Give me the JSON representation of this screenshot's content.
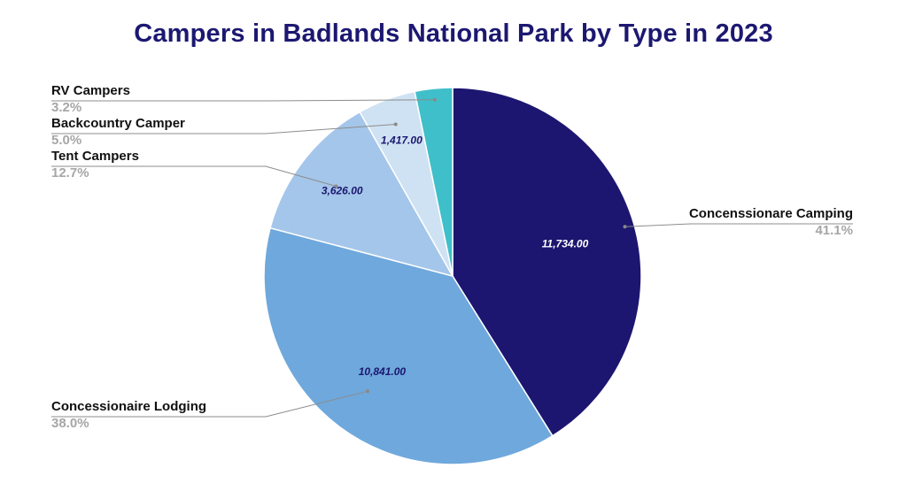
{
  "chart_data": {
    "type": "pie",
    "title": "Campers in Badlands National Park by Type in 2023",
    "slices": [
      {
        "name": "Concenssionare Camping",
        "value": 11734,
        "value_label": "11,734.00",
        "percent_label": "41.1%",
        "color": "#1c1670",
        "value_color": "#ffffff"
      },
      {
        "name": "Concessionaire Lodging",
        "value": 10841,
        "value_label": "10,841.00",
        "percent_label": "38.0%",
        "color": "#6fa8dc",
        "value_color": "#1c1670"
      },
      {
        "name": "Tent Campers",
        "value": 3626,
        "value_label": "3,626.00",
        "percent_label": "12.7%",
        "color": "#a4c6ea",
        "value_color": "#1c1670"
      },
      {
        "name": "Backcountry Camper",
        "value": 1417,
        "value_label": "1,417.00",
        "percent_label": "5.0%",
        "color": "#cfe2f3",
        "value_color": "#1c1670"
      },
      {
        "name": "RV Campers",
        "value": 920,
        "value_label": "",
        "percent_label": "3.2%",
        "color": "#3fbfc9",
        "value_color": "#1c1670"
      }
    ],
    "start_angle": "12 o'clock",
    "direction": "clockwise",
    "legend": "callout labels outside the pie"
  }
}
